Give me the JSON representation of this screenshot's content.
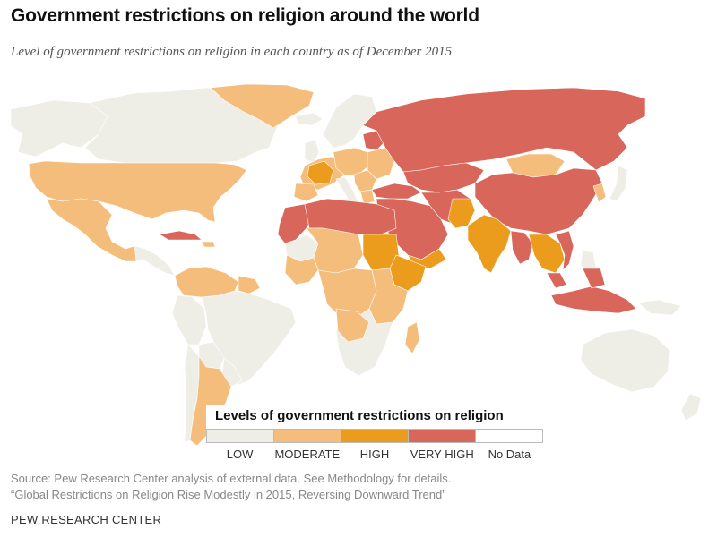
{
  "title": "Government restrictions on religion around the world",
  "subtitle": "Level of government restrictions on religion in each country as of December 2015",
  "legend": {
    "title": "Levels of government restrictions on religion",
    "items": [
      {
        "label": "LOW",
        "color": "#eeede6"
      },
      {
        "label": "MODERATE",
        "color": "#f5bd7c"
      },
      {
        "label": "HIGH",
        "color": "#ec9c1c"
      },
      {
        "label": "VERY HIGH",
        "color": "#d9665a"
      },
      {
        "label": "No Data",
        "color": "#ffffff"
      }
    ]
  },
  "source_line1": "Source: Pew Research Center analysis of external data. See Methodology for details.",
  "source_line2": "“Global Restrictions on Religion Rise Modestly in 2015, Reversing Downward Trend”",
  "credit": "PEW RESEARCH CENTER",
  "colors": {
    "low": "#eeede6",
    "moderate": "#f5bd7c",
    "high": "#ec9c1c",
    "very_high": "#d9665a",
    "no_data": "#ffffff"
  }
}
